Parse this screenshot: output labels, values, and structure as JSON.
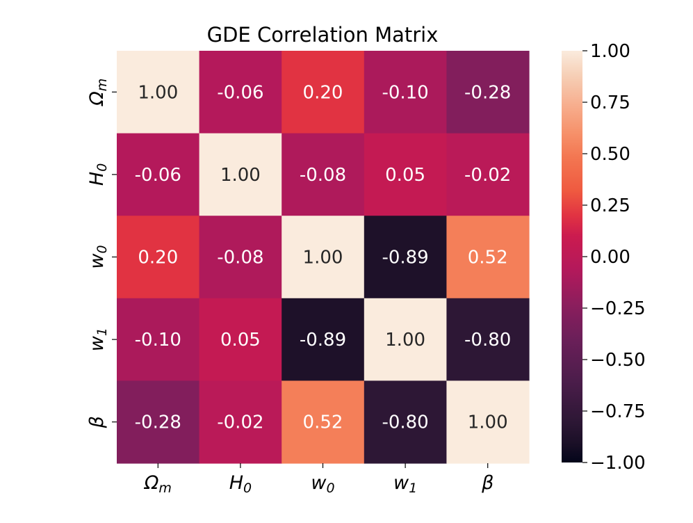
{
  "chart_data": {
    "type": "heatmap",
    "title": "GDE Correlation Matrix",
    "x_categories": [
      "Ωm",
      "H0",
      "w0",
      "w1",
      "β"
    ],
    "y_categories": [
      "Ωm",
      "H0",
      "w0",
      "w1",
      "β"
    ],
    "axis_symbols": [
      {
        "base": "Ω",
        "sub": "m"
      },
      {
        "base": "H",
        "sub": "0"
      },
      {
        "base": "w",
        "sub": "0"
      },
      {
        "base": "w",
        "sub": "1"
      },
      {
        "base": "β",
        "sub": ""
      }
    ],
    "values": [
      [
        1.0,
        -0.06,
        0.2,
        -0.1,
        -0.28
      ],
      [
        -0.06,
        1.0,
        -0.08,
        0.05,
        -0.02
      ],
      [
        0.2,
        -0.08,
        1.0,
        -0.89,
        0.52
      ],
      [
        -0.1,
        0.05,
        -0.89,
        1.0,
        -0.8
      ],
      [
        -0.28,
        -0.02,
        0.52,
        -0.8,
        1.0
      ]
    ],
    "cell_labels": [
      [
        "1.00",
        "-0.06",
        "0.20",
        "-0.10",
        "-0.28"
      ],
      [
        "-0.06",
        "1.00",
        "-0.08",
        "0.05",
        "-0.02"
      ],
      [
        "0.20",
        "-0.08",
        "1.00",
        "-0.89",
        "0.52"
      ],
      [
        "-0.10",
        "0.05",
        "-0.89",
        "1.00",
        "-0.80"
      ],
      [
        "-0.28",
        "-0.02",
        "0.52",
        "-0.80",
        "1.00"
      ]
    ],
    "vmin": -1.0,
    "vmax": 1.0,
    "colormap": "rocket",
    "colorbar_ticks": [
      1.0,
      0.75,
      0.5,
      0.25,
      0.0,
      -0.25,
      -0.5,
      -0.75,
      -1.0
    ],
    "colorbar_labels": [
      "1.00",
      "0.75",
      "0.50",
      "0.25",
      "0.00",
      "−0.25",
      "−0.50",
      "−0.75",
      "−1.00"
    ]
  }
}
